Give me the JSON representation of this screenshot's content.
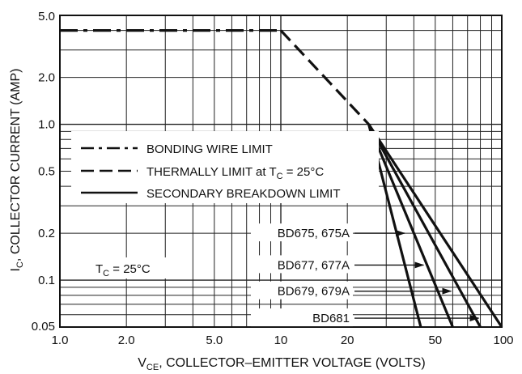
{
  "chart_data": {
    "type": "line",
    "scale": {
      "x": "log",
      "y": "log"
    },
    "xlim": [
      1,
      100
    ],
    "ylim": [
      0.05,
      5
    ],
    "x_ticks": [
      "1.0",
      "2.0",
      "5.0",
      "10",
      "20",
      "50",
      "100"
    ],
    "y_ticks": [
      "5.0",
      "2.0",
      "1.0",
      "0.5",
      "0.2",
      "0.1",
      "0.05"
    ],
    "xlabel": {
      "pre": "V",
      "sub": "CE",
      "post": ", COLLECTOR–EMITTER VOLTAGE (VOLTS)"
    },
    "ylabel": {
      "pre": "I",
      "sub": "C",
      "post": ", COLLECTOR CURRENT (AMP)"
    },
    "grid": true,
    "legend": {
      "placement": "left-middle",
      "items": [
        {
          "style": "dash-dot",
          "label": "BONDING WIRE LIMIT"
        },
        {
          "style": "dashed",
          "label_pre": "THERMALLY LIMIT at T",
          "label_sub": "C",
          "label_post": " = 25°C"
        },
        {
          "style": "solid",
          "label": "SECONDARY BREAKDOWN LIMIT"
        }
      ]
    },
    "condition": {
      "pre": "T",
      "sub": "C",
      "post": " = 25°C"
    },
    "series": [
      {
        "key": "bonding",
        "style": "dash-dot",
        "points": [
          [
            1,
            4
          ],
          [
            10,
            4
          ]
        ]
      },
      {
        "key": "thermal",
        "style": "dashed",
        "points": [
          [
            10,
            4
          ],
          [
            25,
            1
          ]
        ]
      },
      {
        "name": "BD675, 675A",
        "style": "solid",
        "points": [
          [
            25,
            1
          ],
          [
            43,
            0.05
          ]
        ]
      },
      {
        "name": "BD677, 677A",
        "style": "solid",
        "points": [
          [
            25,
            1
          ],
          [
            60,
            0.05
          ]
        ]
      },
      {
        "name": "BD679, 679A",
        "style": "solid",
        "points": [
          [
            25,
            1
          ],
          [
            80,
            0.05
          ]
        ]
      },
      {
        "name": "BD681",
        "style": "solid",
        "points": [
          [
            25,
            1
          ],
          [
            100,
            0.05
          ]
        ]
      }
    ],
    "annotations": [
      {
        "text": "BD675, 675A",
        "target": [
          37,
          0.2
        ]
      },
      {
        "text": "BD677, 677A",
        "target": [
          45,
          0.125
        ]
      },
      {
        "text": "BD679, 679A",
        "target": [
          60,
          0.085
        ]
      },
      {
        "text": "BD681",
        "target": [
          80,
          0.057
        ]
      }
    ]
  }
}
